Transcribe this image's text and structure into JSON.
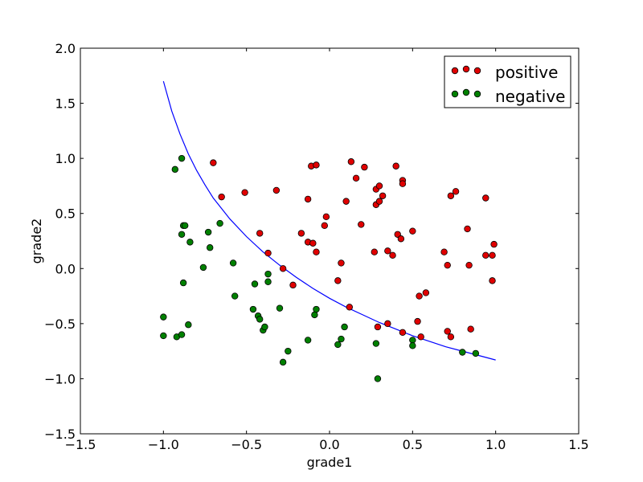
{
  "chart_data": {
    "type": "scatter",
    "title": "",
    "xlabel": "grade1",
    "ylabel": "grade2",
    "xlim": [
      -1.5,
      1.5
    ],
    "ylim": [
      -1.5,
      2.0
    ],
    "xticks": [
      -1.5,
      -1.0,
      -0.5,
      0.0,
      0.5,
      1.0,
      1.5
    ],
    "yticks": [
      -1.5,
      -1.0,
      -0.5,
      0.0,
      0.5,
      1.0,
      1.5,
      2.0
    ],
    "xtick_labels": [
      "−1.5",
      "−1.0",
      "−0.5",
      "0.0",
      "0.5",
      "1.0",
      "1.5"
    ],
    "ytick_labels": [
      "−1.5",
      "−1.0",
      "−0.5",
      "0.0",
      "0.5",
      "1.0",
      "1.5",
      "2.0"
    ],
    "grid": false,
    "legend_position": "top-right",
    "series": [
      {
        "name": "positive",
        "color": "#e00000",
        "marker": "circle",
        "points": [
          [
            -0.7,
            0.96
          ],
          [
            -0.65,
            0.65
          ],
          [
            -0.51,
            0.69
          ],
          [
            -0.32,
            0.71
          ],
          [
            -0.42,
            0.32
          ],
          [
            -0.37,
            0.14
          ],
          [
            -0.28,
            0.0
          ],
          [
            -0.22,
            -0.15
          ],
          [
            -0.17,
            0.32
          ],
          [
            -0.13,
            0.63
          ],
          [
            -0.13,
            0.24
          ],
          [
            -0.1,
            0.23
          ],
          [
            -0.11,
            0.93
          ],
          [
            -0.08,
            0.94
          ],
          [
            -0.08,
            0.15
          ],
          [
            -0.02,
            0.47
          ],
          [
            -0.03,
            0.39
          ],
          [
            0.05,
            -0.11
          ],
          [
            0.07,
            0.05
          ],
          [
            0.1,
            0.61
          ],
          [
            0.12,
            -0.35
          ],
          [
            0.13,
            0.97
          ],
          [
            0.16,
            0.82
          ],
          [
            0.21,
            0.92
          ],
          [
            0.19,
            0.4
          ],
          [
            0.27,
            0.15
          ],
          [
            0.28,
            0.72
          ],
          [
            0.28,
            0.58
          ],
          [
            0.3,
            0.61
          ],
          [
            0.3,
            0.75
          ],
          [
            0.32,
            0.66
          ],
          [
            0.29,
            -0.53
          ],
          [
            0.35,
            -0.5
          ],
          [
            0.35,
            0.16
          ],
          [
            0.38,
            0.12
          ],
          [
            0.4,
            0.93
          ],
          [
            0.41,
            0.31
          ],
          [
            0.43,
            0.27
          ],
          [
            0.44,
            0.8
          ],
          [
            0.44,
            0.77
          ],
          [
            0.44,
            -0.58
          ],
          [
            0.5,
            0.34
          ],
          [
            0.53,
            -0.48
          ],
          [
            0.54,
            -0.25
          ],
          [
            0.55,
            -0.62
          ],
          [
            0.58,
            -0.22
          ],
          [
            0.69,
            0.15
          ],
          [
            0.71,
            0.03
          ],
          [
            0.71,
            -0.57
          ],
          [
            0.73,
            0.66
          ],
          [
            0.73,
            -0.62
          ],
          [
            0.76,
            0.7
          ],
          [
            0.83,
            0.36
          ],
          [
            0.84,
            0.03
          ],
          [
            0.85,
            -0.55
          ],
          [
            0.94,
            0.64
          ],
          [
            0.94,
            0.12
          ],
          [
            0.98,
            0.12
          ],
          [
            0.98,
            -0.11
          ],
          [
            0.99,
            0.22
          ]
        ]
      },
      {
        "name": "negative",
        "color": "#008000",
        "marker": "circle",
        "points": [
          [
            -0.93,
            0.9
          ],
          [
            -0.89,
            1.0
          ],
          [
            -0.88,
            0.39
          ],
          [
            -0.87,
            0.39
          ],
          [
            -0.89,
            0.31
          ],
          [
            -0.84,
            0.24
          ],
          [
            -0.88,
            -0.13
          ],
          [
            -1.0,
            -0.44
          ],
          [
            -1.0,
            -0.61
          ],
          [
            -0.92,
            -0.62
          ],
          [
            -0.89,
            -0.6
          ],
          [
            -0.85,
            -0.51
          ],
          [
            -0.76,
            0.01
          ],
          [
            -0.73,
            0.33
          ],
          [
            -0.72,
            0.19
          ],
          [
            -0.66,
            0.41
          ],
          [
            -0.58,
            0.05
          ],
          [
            -0.57,
            -0.25
          ],
          [
            -0.45,
            -0.14
          ],
          [
            -0.46,
            -0.37
          ],
          [
            -0.43,
            -0.43
          ],
          [
            -0.42,
            -0.46
          ],
          [
            -0.4,
            -0.56
          ],
          [
            -0.39,
            -0.53
          ],
          [
            -0.37,
            -0.05
          ],
          [
            -0.37,
            -0.12
          ],
          [
            -0.3,
            -0.36
          ],
          [
            -0.28,
            -0.85
          ],
          [
            -0.25,
            -0.75
          ],
          [
            -0.13,
            -0.65
          ],
          [
            -0.09,
            -0.42
          ],
          [
            -0.08,
            -0.37
          ],
          [
            0.05,
            -0.69
          ],
          [
            0.07,
            -0.64
          ],
          [
            0.09,
            -0.53
          ],
          [
            0.28,
            -0.68
          ],
          [
            0.29,
            -1.0
          ],
          [
            0.5,
            -0.65
          ],
          [
            0.5,
            -0.7
          ],
          [
            0.8,
            -0.76
          ],
          [
            0.88,
            -0.77
          ]
        ]
      }
    ],
    "boundary": {
      "color": "#0000ff",
      "points": [
        [
          -1.0,
          1.7
        ],
        [
          -0.95,
          1.43
        ],
        [
          -0.9,
          1.22
        ],
        [
          -0.85,
          1.04
        ],
        [
          -0.8,
          0.89
        ],
        [
          -0.75,
          0.76
        ],
        [
          -0.7,
          0.64
        ],
        [
          -0.6,
          0.45
        ],
        [
          -0.5,
          0.29
        ],
        [
          -0.4,
          0.15
        ],
        [
          -0.3,
          0.03
        ],
        [
          -0.2,
          -0.08
        ],
        [
          -0.1,
          -0.18
        ],
        [
          0.0,
          -0.27
        ],
        [
          0.1,
          -0.35
        ],
        [
          0.2,
          -0.42
        ],
        [
          0.3,
          -0.49
        ],
        [
          0.4,
          -0.55
        ],
        [
          0.5,
          -0.61
        ],
        [
          0.6,
          -0.66
        ],
        [
          0.7,
          -0.71
        ],
        [
          0.8,
          -0.75
        ],
        [
          0.9,
          -0.79
        ],
        [
          1.0,
          -0.83
        ]
      ]
    }
  }
}
